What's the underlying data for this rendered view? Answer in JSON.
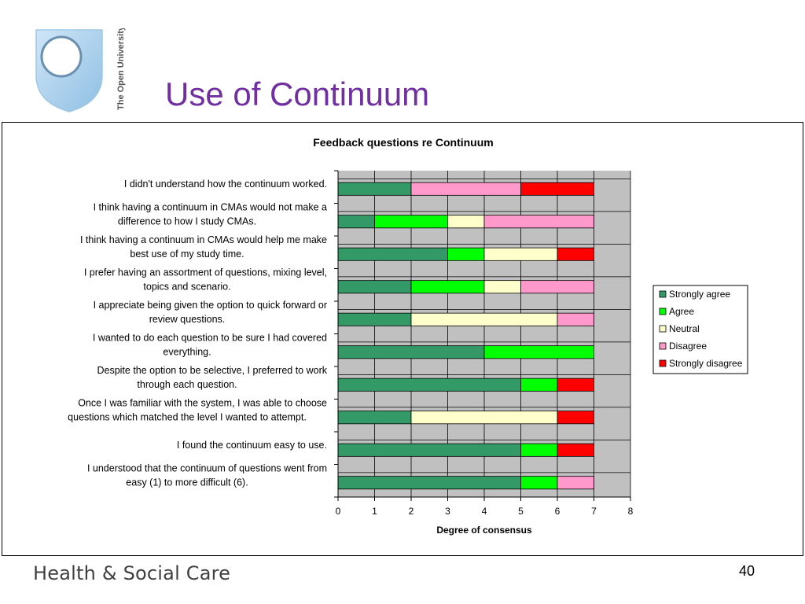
{
  "slide": {
    "title": "Use of Continuum",
    "logo_text": "The Open University",
    "footer": "Health & Social Care",
    "page_number": "40"
  },
  "chart_data": {
    "type": "bar",
    "orientation": "horizontal",
    "stacked": true,
    "title": "Feedback questions re Continuum",
    "xlabel": "Degree of consensus",
    "ylabel": "",
    "xlim": [
      0,
      8
    ],
    "xticks": [
      0,
      1,
      2,
      3,
      4,
      5,
      6,
      7,
      8
    ],
    "grid": true,
    "legend_position": "right",
    "categories": [
      "I didn't understand how the continuum worked.",
      "I think having a continuum in CMAs would not make a difference to how I study CMAs.",
      "I think having a continuum in CMAs would help me make best use of my study time.",
      "I prefer having an assortment of questions, mixing level, topics and scenario.",
      "I appreciate being given the option to quick forward or review questions.",
      "I wanted to do each question to be sure I had covered everything.",
      "Despite the option to be selective, I preferred to work through each question.",
      "Once I was familiar with the system, I was able to choose questions which matched the level I wanted to attempt.",
      "I found the continuum easy to use.",
      "I understood that the continuum of questions went from easy (1) to more difficult (6)."
    ],
    "category_lines": [
      [
        "I didn't understand how the continuum worked."
      ],
      [
        "I think having a continuum in CMAs would not make a",
        "difference to how I study CMAs."
      ],
      [
        "I think having a continuum in CMAs would help me make",
        "best use of my study time."
      ],
      [
        "I prefer having an assortment of questions, mixing level,",
        "topics and scenario."
      ],
      [
        "I appreciate being given the option to quick forward or",
        "review questions."
      ],
      [
        "I wanted to do each question to be sure I had covered",
        "everything."
      ],
      [
        "Despite the option to be selective, I preferred to work",
        "through each question."
      ],
      [
        "Once I was familiar with the system, I was able to choose",
        "questions which matched the level I wanted to attempt."
      ],
      [
        "I found the continuum easy to use."
      ],
      [
        "I understood that the continuum of questions went from",
        "easy (1) to more difficult (6)."
      ]
    ],
    "series": [
      {
        "name": "Strongly agree",
        "color": "#339966",
        "values": [
          2,
          1,
          3,
          2,
          2,
          4,
          5,
          2,
          5,
          5
        ]
      },
      {
        "name": "Agree",
        "color": "#00ff00",
        "values": [
          0,
          2,
          1,
          2,
          0,
          3,
          1,
          0,
          1,
          1
        ]
      },
      {
        "name": "Neutral",
        "color": "#ffffcc",
        "values": [
          0,
          1,
          2,
          1,
          4,
          0,
          0,
          4,
          0,
          0
        ]
      },
      {
        "name": "Disagree",
        "color": "#ff99cc",
        "values": [
          3,
          3,
          0,
          2,
          1,
          0,
          0,
          0,
          0,
          1
        ]
      },
      {
        "name": "Strongly disagree",
        "color": "#ff0000",
        "values": [
          2,
          0,
          1,
          0,
          0,
          0,
          1,
          1,
          1,
          0
        ]
      }
    ],
    "plot_background": "#c0c0c0"
  }
}
